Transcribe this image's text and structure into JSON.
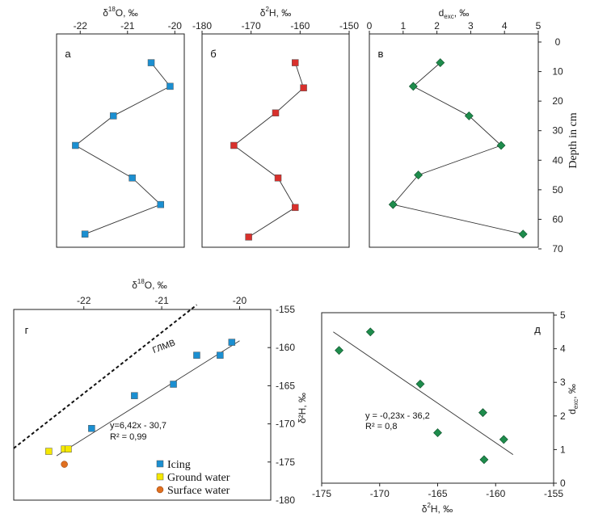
{
  "colors": {
    "icing": "#1b8fd1",
    "deuterium_red": "#d8302c",
    "dexc_green": "#1e8c4c",
    "ground_water": "#f5e800",
    "surface_water": "#e07020",
    "line": "#333333"
  },
  "chart_data": [
    {
      "id": "a",
      "type": "line",
      "panel_label": "а",
      "xlabel_prefix": "δ",
      "xlabel_sup": "18",
      "xlabel_suffix": "O, ‰",
      "xlim": [
        -22.5,
        -19.8
      ],
      "ylim": [
        0,
        70
      ],
      "y_inverted": true,
      "xticks": [
        -22,
        -21,
        -20
      ],
      "xtick_labels": [
        "-22",
        "-21",
        "-20"
      ],
      "series": [
        {
          "marker": "square",
          "color": "#1b8fd1",
          "x": [
            -20.5,
            -20.1,
            -21.3,
            -22.1,
            -20.9,
            -20.3,
            -21.9
          ],
          "y": [
            7,
            15,
            25,
            35,
            46,
            55,
            65
          ]
        }
      ]
    },
    {
      "id": "b",
      "type": "line",
      "panel_label": "б",
      "xlabel_prefix": "δ",
      "xlabel_sup": "2",
      "xlabel_suffix": "H, ‰",
      "xlim": [
        -180,
        -150
      ],
      "ylim": [
        0,
        70
      ],
      "y_inverted": true,
      "xticks": [
        -180,
        -170,
        -160,
        -150
      ],
      "xtick_labels": [
        "-180",
        "-170",
        "-160",
        "-150"
      ],
      "series": [
        {
          "marker": "square",
          "color": "#d8302c",
          "x": [
            -161,
            -159.3,
            -165,
            -173.5,
            -164.5,
            -161,
            -170.5
          ],
          "y": [
            7,
            15.5,
            24,
            35,
            46,
            56,
            66
          ]
        }
      ]
    },
    {
      "id": "c",
      "type": "line",
      "panel_label": "в",
      "xlabel_prefix": "d",
      "xlabel_sub": "exc",
      "xlabel_suffix": ", ‰",
      "xlim": [
        0,
        5
      ],
      "ylim": [
        0,
        70
      ],
      "y_inverted": true,
      "xticks": [
        0,
        1,
        2,
        3,
        4,
        5
      ],
      "xtick_labels": [
        "0",
        "1",
        "2",
        "3",
        "4",
        "5"
      ],
      "yticks": [
        0,
        10,
        20,
        30,
        40,
        50,
        60,
        70
      ],
      "ytick_labels": [
        "0",
        "10",
        "20",
        "30",
        "40",
        "50",
        "60",
        "70"
      ],
      "ylabel": "Depth in cm",
      "series": [
        {
          "marker": "diamond",
          "color": "#1e8c4c",
          "x": [
            2.1,
            1.3,
            2.95,
            3.9,
            1.45,
            0.7,
            4.55
          ],
          "y": [
            7,
            15,
            25,
            35,
            45,
            55,
            65
          ]
        }
      ]
    },
    {
      "id": "g",
      "type": "scatter",
      "panel_label": "г",
      "xlabel_prefix": "δ",
      "xlabel_sup": "18",
      "xlabel_suffix": "O, ‰",
      "ylabel": "δ²H, ‰",
      "xlim": [
        -22.9,
        -19.6
      ],
      "ylim": [
        -180,
        -155
      ],
      "xticks": [
        -22,
        -21,
        -20
      ],
      "xtick_labels": [
        "-22",
        "-21",
        "-20"
      ],
      "yticks": [
        -155,
        -160,
        -165,
        -170,
        -175,
        -180
      ],
      "ytick_labels": [
        "-155",
        "-160",
        "-165",
        "-170",
        "-175",
        "-180"
      ],
      "line_label": "ГЛМВ",
      "equation": "y=6,42x - 30,7",
      "r2": "R² = 0,99",
      "series": [
        {
          "name": "Icing",
          "marker": "square",
          "color": "#1b8fd1",
          "x": [
            -20.1,
            -20.25,
            -20.55,
            -20.85,
            -21.35,
            -21.9
          ],
          "y": [
            -159.3,
            -161,
            -161,
            -164.8,
            -166.3,
            -170.6
          ]
        },
        {
          "name": "Ground water",
          "marker": "square",
          "color": "#f5e800",
          "x": [
            -22.45,
            -22.25,
            -22.2
          ],
          "y": [
            -173.6,
            -173.3,
            -173.3
          ]
        },
        {
          "name": "Surface water",
          "marker": "circle",
          "color": "#e07020",
          "x": [
            -22.25
          ],
          "y": [
            -175.3
          ]
        }
      ]
    },
    {
      "id": "d",
      "type": "scatter",
      "panel_label": "д",
      "xlabel_prefix": "δ",
      "xlabel_sup": "2",
      "xlabel_suffix": "H, ‰",
      "ylabel": "dexc, ‰",
      "xlim": [
        -175,
        -155
      ],
      "ylim": [
        0,
        5
      ],
      "xticks": [
        -175,
        -170,
        -165,
        -160,
        -155
      ],
      "xtick_labels": [
        "-175",
        "-170",
        "-165",
        "-160",
        "-155"
      ],
      "yticks": [
        0,
        1,
        2,
        3,
        4,
        5
      ],
      "ytick_labels": [
        "0",
        "1",
        "2",
        "3",
        "4",
        "5"
      ],
      "equation": "y = -0,23x - 36,2",
      "r2": "R² = 0,8",
      "series": [
        {
          "marker": "diamond",
          "color": "#1e8c4c",
          "x": [
            -173.5,
            -170.8,
            -166.5,
            -165,
            -161.1,
            -161,
            -159.3
          ],
          "y": [
            3.95,
            4.5,
            2.95,
            1.5,
            2.1,
            0.7,
            1.3
          ]
        }
      ]
    }
  ]
}
